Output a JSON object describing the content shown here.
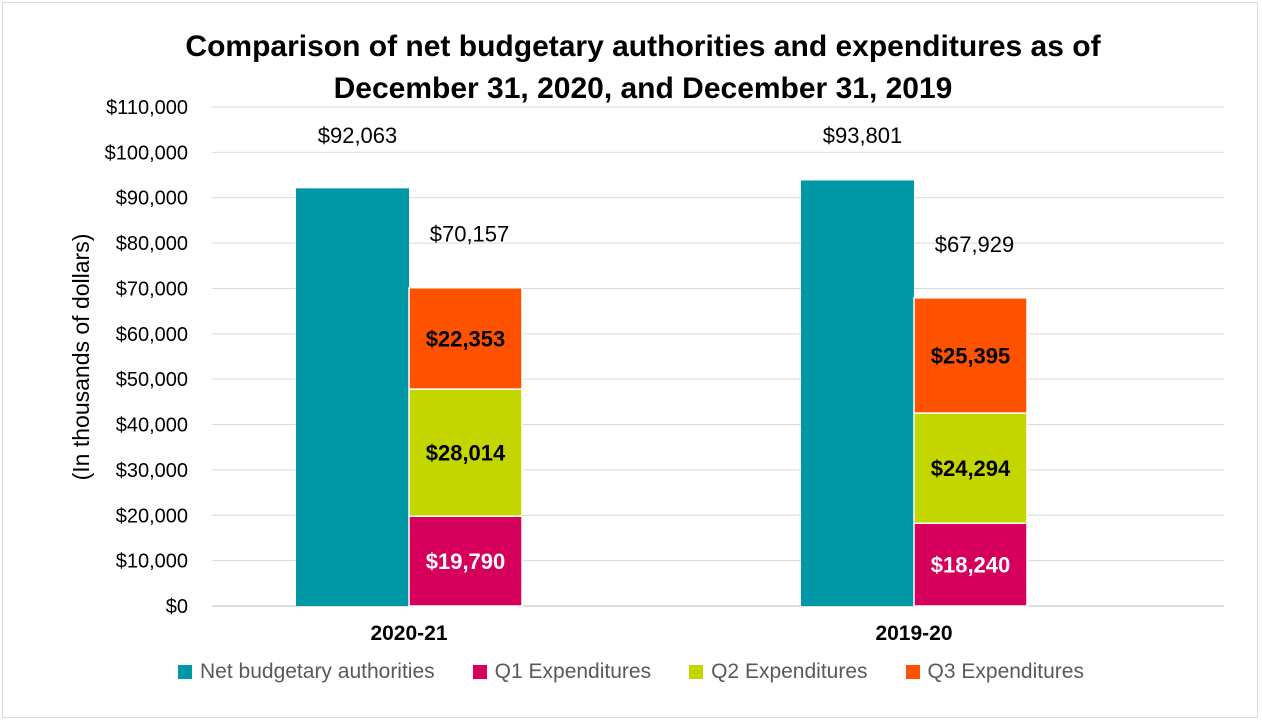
{
  "chart_data": {
    "type": "bar",
    "title_lines": [
      "Comparison of net budgetary authorities and expenditures as of",
      "December 31, 2020, and December 31, 2019"
    ],
    "ylabel": "(In thousands of dollars)",
    "xlabel": "",
    "ylim": [
      0,
      110000
    ],
    "ytick_step": 10000,
    "ytick_labels": [
      "$0",
      "$10,000",
      "$20,000",
      "$30,000",
      "$40,000",
      "$50,000",
      "$60,000",
      "$70,000",
      "$80,000",
      "$90,000",
      "$100,000",
      "$110,000"
    ],
    "categories": [
      "2020-21",
      "2019-20"
    ],
    "series": [
      {
        "name": "Net budgetary authorities",
        "color": "#0097a7",
        "stack": "authorities",
        "values": [
          92063,
          93801
        ],
        "labels": [
          "$92,063",
          "$93,801"
        ]
      },
      {
        "name": "Q1 Expenditures",
        "color": "#d6005c",
        "stack": "expenditures",
        "values": [
          19790,
          18240
        ],
        "labels": [
          "$19,790",
          "$18,240"
        ]
      },
      {
        "name": "Q2 Expenditures",
        "color": "#c3d600",
        "stack": "expenditures",
        "values": [
          28014,
          24294
        ],
        "labels": [
          "$28,014",
          "$24,294"
        ]
      },
      {
        "name": "Q3 Expenditures",
        "color": "#ff5200",
        "stack": "expenditures",
        "values": [
          22353,
          25395
        ],
        "labels": [
          "$22,353",
          "$25,395"
        ]
      }
    ],
    "totals": {
      "values": [
        70157,
        67929
      ],
      "labels": [
        "$70,157",
        "$67,929"
      ]
    },
    "grid": true,
    "legend_position": "bottom"
  }
}
